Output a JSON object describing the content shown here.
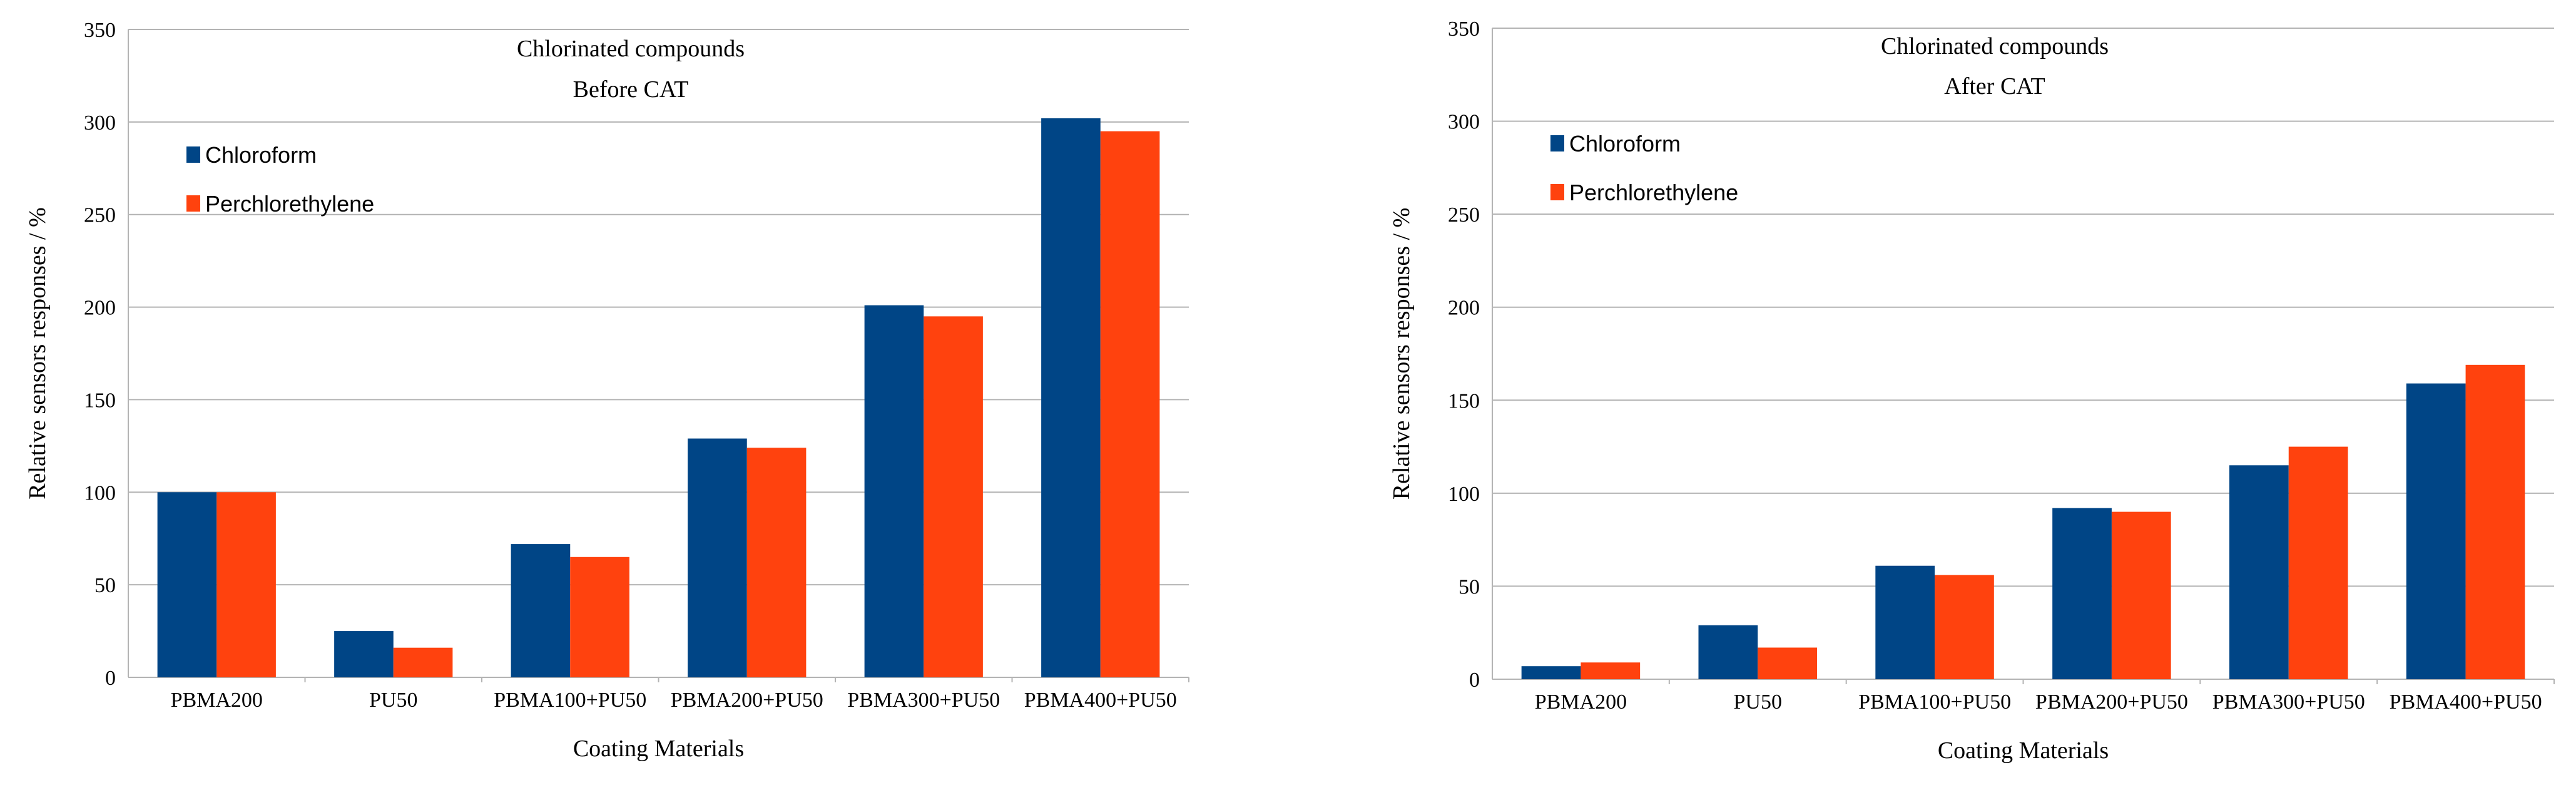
{
  "colors": {
    "series_1": "#004586",
    "series_2": "#ff420e",
    "gridline": "#b3b3b3",
    "axis": "#b3b3b3"
  },
  "chart_data": [
    {
      "type": "bar",
      "title": "Chlorinated compounds",
      "subtitle": "Before CAT",
      "xlabel": "Coating Materials",
      "ylabel": "Relative sensors responses / %",
      "ylim": [
        0,
        350
      ],
      "yticks": [
        0,
        50,
        100,
        150,
        200,
        250,
        300,
        350
      ],
      "grid": true,
      "legend_position": "top-left",
      "categories": [
        "PBMA200",
        "PU50",
        "PBMA100+PU50",
        "PBMA200+PU50",
        "PBMA300+PU50",
        "PBMA400+PU50"
      ],
      "series": [
        {
          "name": "Chloroform",
          "values": [
            100,
            25,
            72,
            129,
            201,
            302
          ]
        },
        {
          "name": "Perchlorethylene",
          "values": [
            100,
            16,
            65,
            124,
            195,
            295
          ]
        }
      ]
    },
    {
      "type": "bar",
      "title": "Chlorinated compounds",
      "subtitle": "After CAT",
      "xlabel": "Coating Materials",
      "ylabel": "Relative sensors responses / %",
      "ylim": [
        0,
        350
      ],
      "yticks": [
        0,
        50,
        100,
        150,
        200,
        250,
        300,
        350
      ],
      "grid": true,
      "legend_position": "top-left",
      "categories": [
        "PBMA200",
        "PU50",
        "PBMA100+PU50",
        "PBMA200+PU50",
        "PBMA300+PU50",
        "PBMA400+PU50"
      ],
      "series": [
        {
          "name": "Chloroform",
          "values": [
            7,
            29,
            61,
            92,
            115,
            159
          ]
        },
        {
          "name": "Perchlorethylene",
          "values": [
            9,
            17,
            56,
            90,
            125,
            169
          ]
        }
      ]
    }
  ]
}
